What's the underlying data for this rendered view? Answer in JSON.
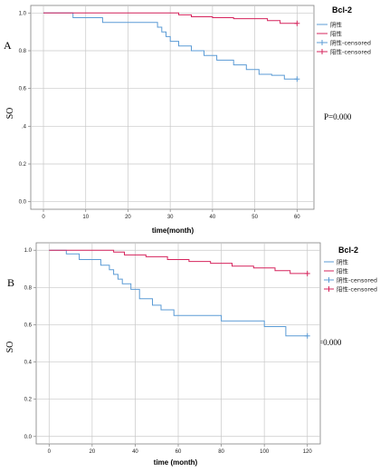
{
  "colors": {
    "negative": "#5b9bd5",
    "positive": "#d6245d",
    "grid": "#c8c8c8",
    "axis": "#7f7f7f"
  },
  "chart_data": [
    {
      "type": "line",
      "panel": "A",
      "title": "",
      "xlabel": "time(month)",
      "ylabel": "SO",
      "xlim": [
        -3,
        64
      ],
      "ylim": [
        -0.04,
        1.04
      ],
      "xticks": [
        0,
        10,
        20,
        30,
        40,
        50,
        60
      ],
      "yticks": [
        0.0,
        0.2,
        0.4,
        0.6,
        0.8,
        1.0
      ],
      "ytick_labels": [
        "0.0",
        "0.2",
        ".4",
        "0.6",
        "0.8",
        "1.0"
      ],
      "grid": true,
      "legend_title": "Bcl-2",
      "legend_position": "top-right",
      "annotation": "P=0.000",
      "series": [
        {
          "name": "阴性",
          "x": [
            0,
            7,
            7,
            14,
            14,
            27,
            27,
            28,
            28,
            29,
            29,
            30,
            30,
            32,
            32,
            35,
            35,
            38,
            38,
            41,
            41,
            43,
            43,
            45,
            45,
            48,
            48,
            51,
            51,
            54,
            54,
            57,
            57,
            60
          ],
          "y": [
            1.0,
            1.0,
            0.975,
            0.975,
            0.95,
            0.95,
            0.925,
            0.925,
            0.9,
            0.9,
            0.875,
            0.875,
            0.85,
            0.85,
            0.825,
            0.825,
            0.8,
            0.8,
            0.775,
            0.775,
            0.75,
            0.75,
            0.75,
            0.75,
            0.725,
            0.725,
            0.7,
            0.7,
            0.675,
            0.675,
            0.67,
            0.67,
            0.65,
            0.65
          ],
          "censored": [
            [
              60,
              0.65
            ]
          ]
        },
        {
          "name": "阳性",
          "x": [
            0,
            32,
            32,
            35,
            35,
            40,
            40,
            45,
            45,
            53,
            53,
            56,
            56,
            60
          ],
          "y": [
            1.0,
            1.0,
            0.99,
            0.99,
            0.98,
            0.98,
            0.975,
            0.975,
            0.97,
            0.97,
            0.96,
            0.96,
            0.945,
            0.945
          ],
          "censored": [
            [
              60,
              0.945
            ]
          ]
        }
      ],
      "legend": [
        "阴性",
        "阳性",
        "阴性-censored",
        "阳性-censored"
      ]
    },
    {
      "type": "line",
      "panel": "B",
      "title": "",
      "xlabel": "time (month)",
      "ylabel": "SO",
      "xlim": [
        -6,
        126
      ],
      "ylim": [
        -0.04,
        1.04
      ],
      "xticks": [
        0,
        20,
        40,
        60,
        80,
        100,
        120
      ],
      "yticks": [
        0.0,
        0.2,
        0.4,
        0.6,
        0.8,
        1.0
      ],
      "ytick_labels": [
        "0.0",
        "0.2",
        "0.4",
        "0.6",
        "0.8",
        "1.0"
      ],
      "grid": true,
      "legend_title": "Bcl-2",
      "legend_position": "top-right",
      "annotation": "P=0.000",
      "series": [
        {
          "name": "阴性",
          "x": [
            0,
            8,
            8,
            14,
            14,
            24,
            24,
            28,
            28,
            30,
            30,
            32,
            32,
            34,
            34,
            38,
            38,
            42,
            42,
            48,
            48,
            52,
            52,
            58,
            58,
            80,
            80,
            100,
            100,
            110,
            110,
            120
          ],
          "y": [
            1.0,
            1.0,
            0.98,
            0.98,
            0.95,
            0.95,
            0.92,
            0.92,
            0.895,
            0.895,
            0.87,
            0.87,
            0.845,
            0.845,
            0.82,
            0.82,
            0.79,
            0.79,
            0.74,
            0.74,
            0.705,
            0.705,
            0.68,
            0.68,
            0.65,
            0.65,
            0.62,
            0.62,
            0.59,
            0.59,
            0.54,
            0.54
          ],
          "censored": [
            [
              120,
              0.54
            ]
          ]
        },
        {
          "name": "阳性",
          "x": [
            0,
            30,
            30,
            35,
            35,
            45,
            45,
            55,
            55,
            65,
            65,
            75,
            75,
            85,
            85,
            95,
            95,
            105,
            105,
            112,
            112,
            120
          ],
          "y": [
            1.0,
            1.0,
            0.99,
            0.99,
            0.975,
            0.975,
            0.965,
            0.965,
            0.95,
            0.95,
            0.94,
            0.94,
            0.93,
            0.93,
            0.915,
            0.915,
            0.905,
            0.905,
            0.89,
            0.89,
            0.875,
            0.875
          ],
          "censored": [
            [
              120,
              0.875
            ]
          ]
        }
      ],
      "legend": [
        "阴性",
        "阳性",
        "阴性-censored",
        "阳性-censored"
      ]
    }
  ]
}
